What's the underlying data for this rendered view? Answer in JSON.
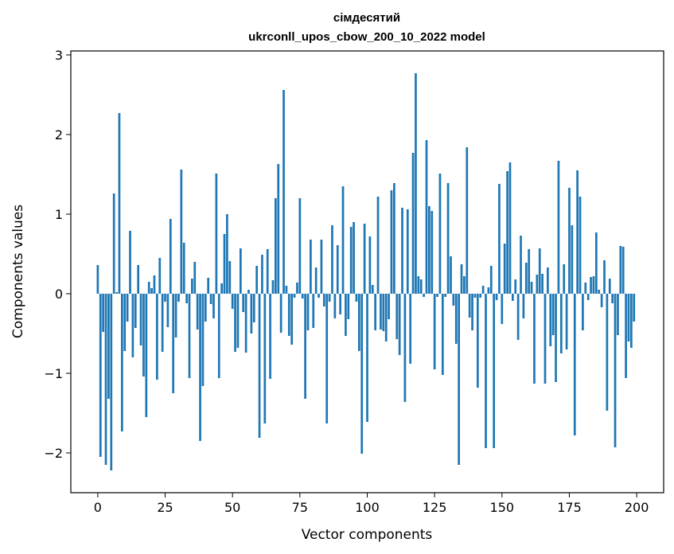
{
  "chart_data": {
    "type": "bar",
    "title_line1": "сімдесятий",
    "title_line2": "ukrconll_upos_cbow_200_10_2022 model",
    "xlabel": "Vector components",
    "ylabel": "Components values",
    "xlim": [
      -10,
      210
    ],
    "ylim": [
      -2.5,
      3.05
    ],
    "xticks": [
      0,
      25,
      50,
      75,
      100,
      125,
      150,
      175,
      200
    ],
    "yticks": [
      -2,
      -1,
      0,
      1,
      2,
      3
    ],
    "xtick_labels": [
      "0",
      "25",
      "50",
      "75",
      "100",
      "125",
      "150",
      "175",
      "200"
    ],
    "ytick_labels": [
      "−2",
      "−1",
      "0",
      "1",
      "2",
      "3"
    ],
    "color": "#1f77b4",
    "values": [
      0.36,
      -2.05,
      -0.48,
      -2.15,
      -1.32,
      -2.22,
      1.26,
      0.02,
      2.27,
      -1.73,
      -0.72,
      -0.35,
      0.79,
      -0.8,
      -0.43,
      0.36,
      -0.65,
      -1.04,
      -1.55,
      0.15,
      0.07,
      0.23,
      -1.08,
      0.45,
      -0.73,
      -0.1,
      -0.42,
      0.94,
      -1.25,
      -0.55,
      -0.1,
      1.56,
      0.64,
      -0.12,
      -1.06,
      0.19,
      0.4,
      -0.45,
      -1.85,
      -1.16,
      -0.35,
      0.2,
      -0.13,
      -0.31,
      1.51,
      -1.06,
      0.13,
      0.75,
      1.0,
      0.41,
      -0.19,
      -0.73,
      -0.68,
      0.57,
      -0.23,
      -0.74,
      0.05,
      -0.5,
      -0.36,
      0.35,
      -1.81,
      0.49,
      -1.63,
      0.56,
      -1.07,
      0.17,
      1.2,
      1.63,
      -0.49,
      2.56,
      0.1,
      -0.53,
      -0.64,
      -0.05,
      0.14,
      1.2,
      -0.06,
      -1.32,
      -0.46,
      0.68,
      -0.43,
      0.33,
      -0.05,
      0.68,
      -0.16,
      -1.63,
      -0.1,
      0.86,
      -0.31,
      0.61,
      -0.26,
      1.35,
      -0.53,
      -0.32,
      0.84,
      0.9,
      -0.1,
      -0.72,
      -2.01,
      0.88,
      -1.61,
      0.72,
      0.11,
      -0.46,
      1.22,
      -0.45,
      -0.47,
      -0.6,
      -0.32,
      1.3,
      1.39,
      -0.57,
      -0.77,
      1.08,
      -1.36,
      1.06,
      -0.88,
      1.77,
      2.77,
      0.22,
      0.18,
      -0.04,
      1.93,
      1.1,
      1.04,
      -0.95,
      -0.04,
      1.51,
      -1.02,
      -0.04,
      1.39,
      0.47,
      -0.15,
      -0.63,
      -2.15,
      0.37,
      0.22,
      1.84,
      -0.3,
      -0.46,
      -0.05,
      -1.18,
      -0.05,
      0.1,
      -1.94,
      0.08,
      0.35,
      -1.94,
      -0.08,
      1.38,
      -0.38,
      0.63,
      1.54,
      1.65,
      -0.09,
      0.18,
      -0.58,
      0.73,
      -0.31,
      0.39,
      0.56,
      0.15,
      -1.13,
      0.24,
      0.57,
      0.25,
      -1.13,
      0.33,
      -0.66,
      -0.52,
      -1.11,
      1.67,
      -0.75,
      0.37,
      -0.7,
      1.33,
      0.86,
      -1.78,
      1.55,
      1.22,
      -0.46,
      0.14,
      -0.08,
      0.21,
      0.22,
      0.77,
      0.05,
      -0.17,
      0.42,
      -1.47,
      0.19,
      -0.12,
      -1.93,
      -0.52,
      0.6,
      0.59,
      -1.06,
      -0.6,
      -0.68,
      -0.35
    ]
  }
}
